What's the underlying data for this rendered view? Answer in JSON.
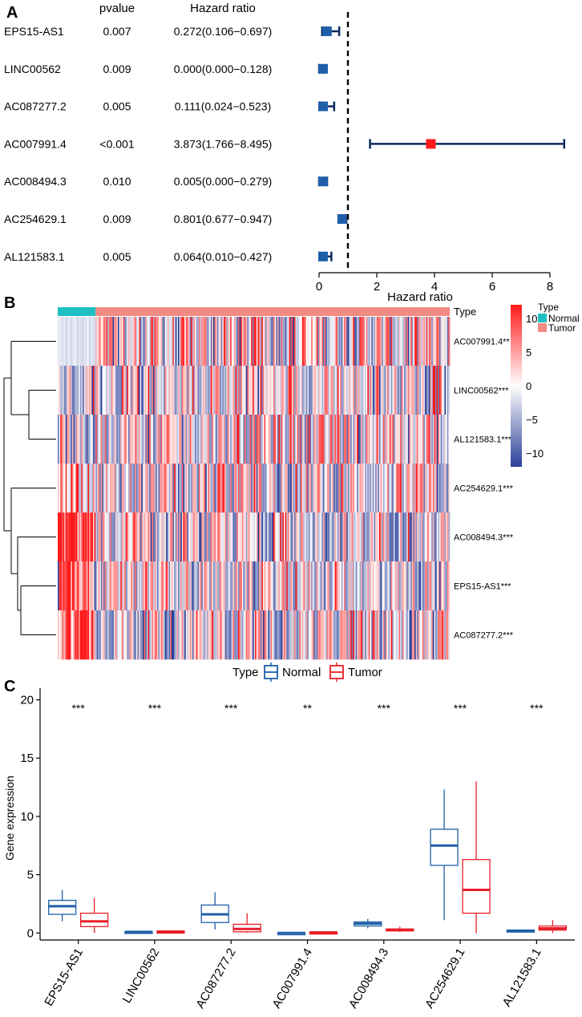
{
  "panels": {
    "a": {
      "label": "A"
    },
    "b": {
      "label": "B"
    },
    "c": {
      "label": "C"
    }
  },
  "chart_data": [
    {
      "type": "forest",
      "panel": "A",
      "columns": {
        "pvalue": "pvalue",
        "hr": "Hazard ratio"
      },
      "xlabel": "Hazard ratio",
      "xlim": [
        0,
        8
      ],
      "xticks": [
        0,
        2,
        4,
        6,
        8
      ],
      "reference_line": 1,
      "rows": [
        {
          "gene": "EPS15-AS1",
          "pvalue": "0.007",
          "hr_text": "0.272(0.106−0.697)",
          "hr": 0.272,
          "low": 0.106,
          "high": 0.697,
          "color": "#1f5fa8"
        },
        {
          "gene": "LINC00562",
          "pvalue": "0.009",
          "hr_text": "0.000(0.000−0.128)",
          "hr": 0.0,
          "low": 0.0,
          "high": 0.128,
          "color": "#1f5fa8"
        },
        {
          "gene": "AC087277.2",
          "pvalue": "0.005",
          "hr_text": "0.111(0.024−0.523)",
          "hr": 0.111,
          "low": 0.024,
          "high": 0.523,
          "color": "#1f5fa8"
        },
        {
          "gene": "AC007991.4",
          "pvalue": "<0.001",
          "hr_text": "3.873(1.766−8.495)",
          "hr": 3.873,
          "low": 1.766,
          "high": 8.495,
          "color": "#ff1a1a"
        },
        {
          "gene": "AC008494.3",
          "pvalue": "0.010",
          "hr_text": "0.005(0.000−0.279)",
          "hr": 0.005,
          "low": 0.0,
          "high": 0.279,
          "color": "#1f5fa8"
        },
        {
          "gene": "AC254629.1",
          "pvalue": "0.009",
          "hr_text": "0.801(0.677−0.947)",
          "hr": 0.801,
          "low": 0.677,
          "high": 0.947,
          "color": "#1f5fa8"
        },
        {
          "gene": "AL121583.1",
          "pvalue": "0.005",
          "hr_text": "0.064(0.010−0.427)",
          "hr": 0.064,
          "low": 0.01,
          "high": 0.427,
          "color": "#1f5fa8"
        }
      ],
      "line_color": "#0d2a5e"
    },
    {
      "type": "heatmap",
      "panel": "B",
      "annotation_title": "Type",
      "groups": [
        {
          "name": "Normal",
          "color": "#1fbfc4",
          "fraction": 0.095
        },
        {
          "name": "Tumor",
          "color": "#f28b82",
          "fraction": 0.905
        }
      ],
      "rows": [
        "AC007991.4**",
        "LINC00562***",
        "AL121583.1***",
        "AC254629.1***",
        "AC008494.3***",
        "EPS15-AS1***",
        "AC087277.2***"
      ],
      "colorbar": {
        "ticks": [
          10,
          5,
          0,
          -5,
          -10
        ],
        "range": [
          -12,
          12
        ],
        "colors": [
          "#2a3f98",
          "#ffffff",
          "#ff1a1a"
        ]
      },
      "legend_title": "Type",
      "columns_count": 300
    },
    {
      "type": "boxplot",
      "panel": "C",
      "legend": {
        "title": "Type",
        "entries": [
          {
            "name": "Normal",
            "color": "#1f5fa8"
          },
          {
            "name": "Tumor",
            "color": "#e8202a"
          }
        ]
      },
      "ylabel": "Gene expression",
      "ylim": [
        -0.6,
        21
      ],
      "yticks": [
        0,
        5,
        10,
        15,
        20
      ],
      "categories": [
        "EPS15-AS1",
        "LINC00562",
        "AC087277.2",
        "AC007991.4",
        "AC008494.3",
        "AC254629.1",
        "AL121583.1"
      ],
      "significance": [
        "***",
        "***",
        "***",
        "**",
        "***",
        "***",
        "***"
      ],
      "series": [
        {
          "name": "Normal",
          "color": "#1f5fa8",
          "boxes": [
            {
              "min": 1.0,
              "q1": 1.6,
              "median": 2.3,
              "q3": 2.8,
              "max": 3.7
            },
            {
              "min": 0.05,
              "q1": 0.07,
              "median": 0.1,
              "q3": 0.13,
              "max": 0.15
            },
            {
              "min": 0.3,
              "q1": 0.9,
              "median": 1.6,
              "q3": 2.4,
              "max": 3.5
            },
            {
              "min": -0.05,
              "q1": -0.02,
              "median": 0.0,
              "q3": 0.02,
              "max": 0.05
            },
            {
              "min": 0.4,
              "q1": 0.6,
              "median": 0.8,
              "q3": 0.95,
              "max": 1.2
            },
            {
              "min": 1.1,
              "q1": 5.8,
              "median": 7.5,
              "q3": 8.9,
              "max": 12.3
            },
            {
              "min": 0.1,
              "q1": 0.15,
              "median": 0.2,
              "q3": 0.25,
              "max": 0.3
            }
          ]
        },
        {
          "name": "Tumor",
          "color": "#e8202a",
          "boxes": [
            {
              "min": 0.0,
              "q1": 0.55,
              "median": 1.0,
              "q3": 1.7,
              "max": 3.0
            },
            {
              "min": 0.05,
              "q1": 0.1,
              "median": 0.12,
              "q3": 0.16,
              "max": 0.2
            },
            {
              "min": 0.0,
              "q1": 0.1,
              "median": 0.35,
              "q3": 0.75,
              "max": 1.7
            },
            {
              "min": 0.0,
              "q1": 0.02,
              "median": 0.05,
              "q3": 0.08,
              "max": 0.12
            },
            {
              "min": 0.1,
              "q1": 0.18,
              "median": 0.25,
              "q3": 0.35,
              "max": 0.55
            },
            {
              "min": 0.0,
              "q1": 1.7,
              "median": 3.7,
              "q3": 6.3,
              "max": 13.0
            },
            {
              "min": 0.0,
              "q1": 0.25,
              "median": 0.4,
              "q3": 0.6,
              "max": 1.1
            }
          ]
        }
      ]
    }
  ]
}
